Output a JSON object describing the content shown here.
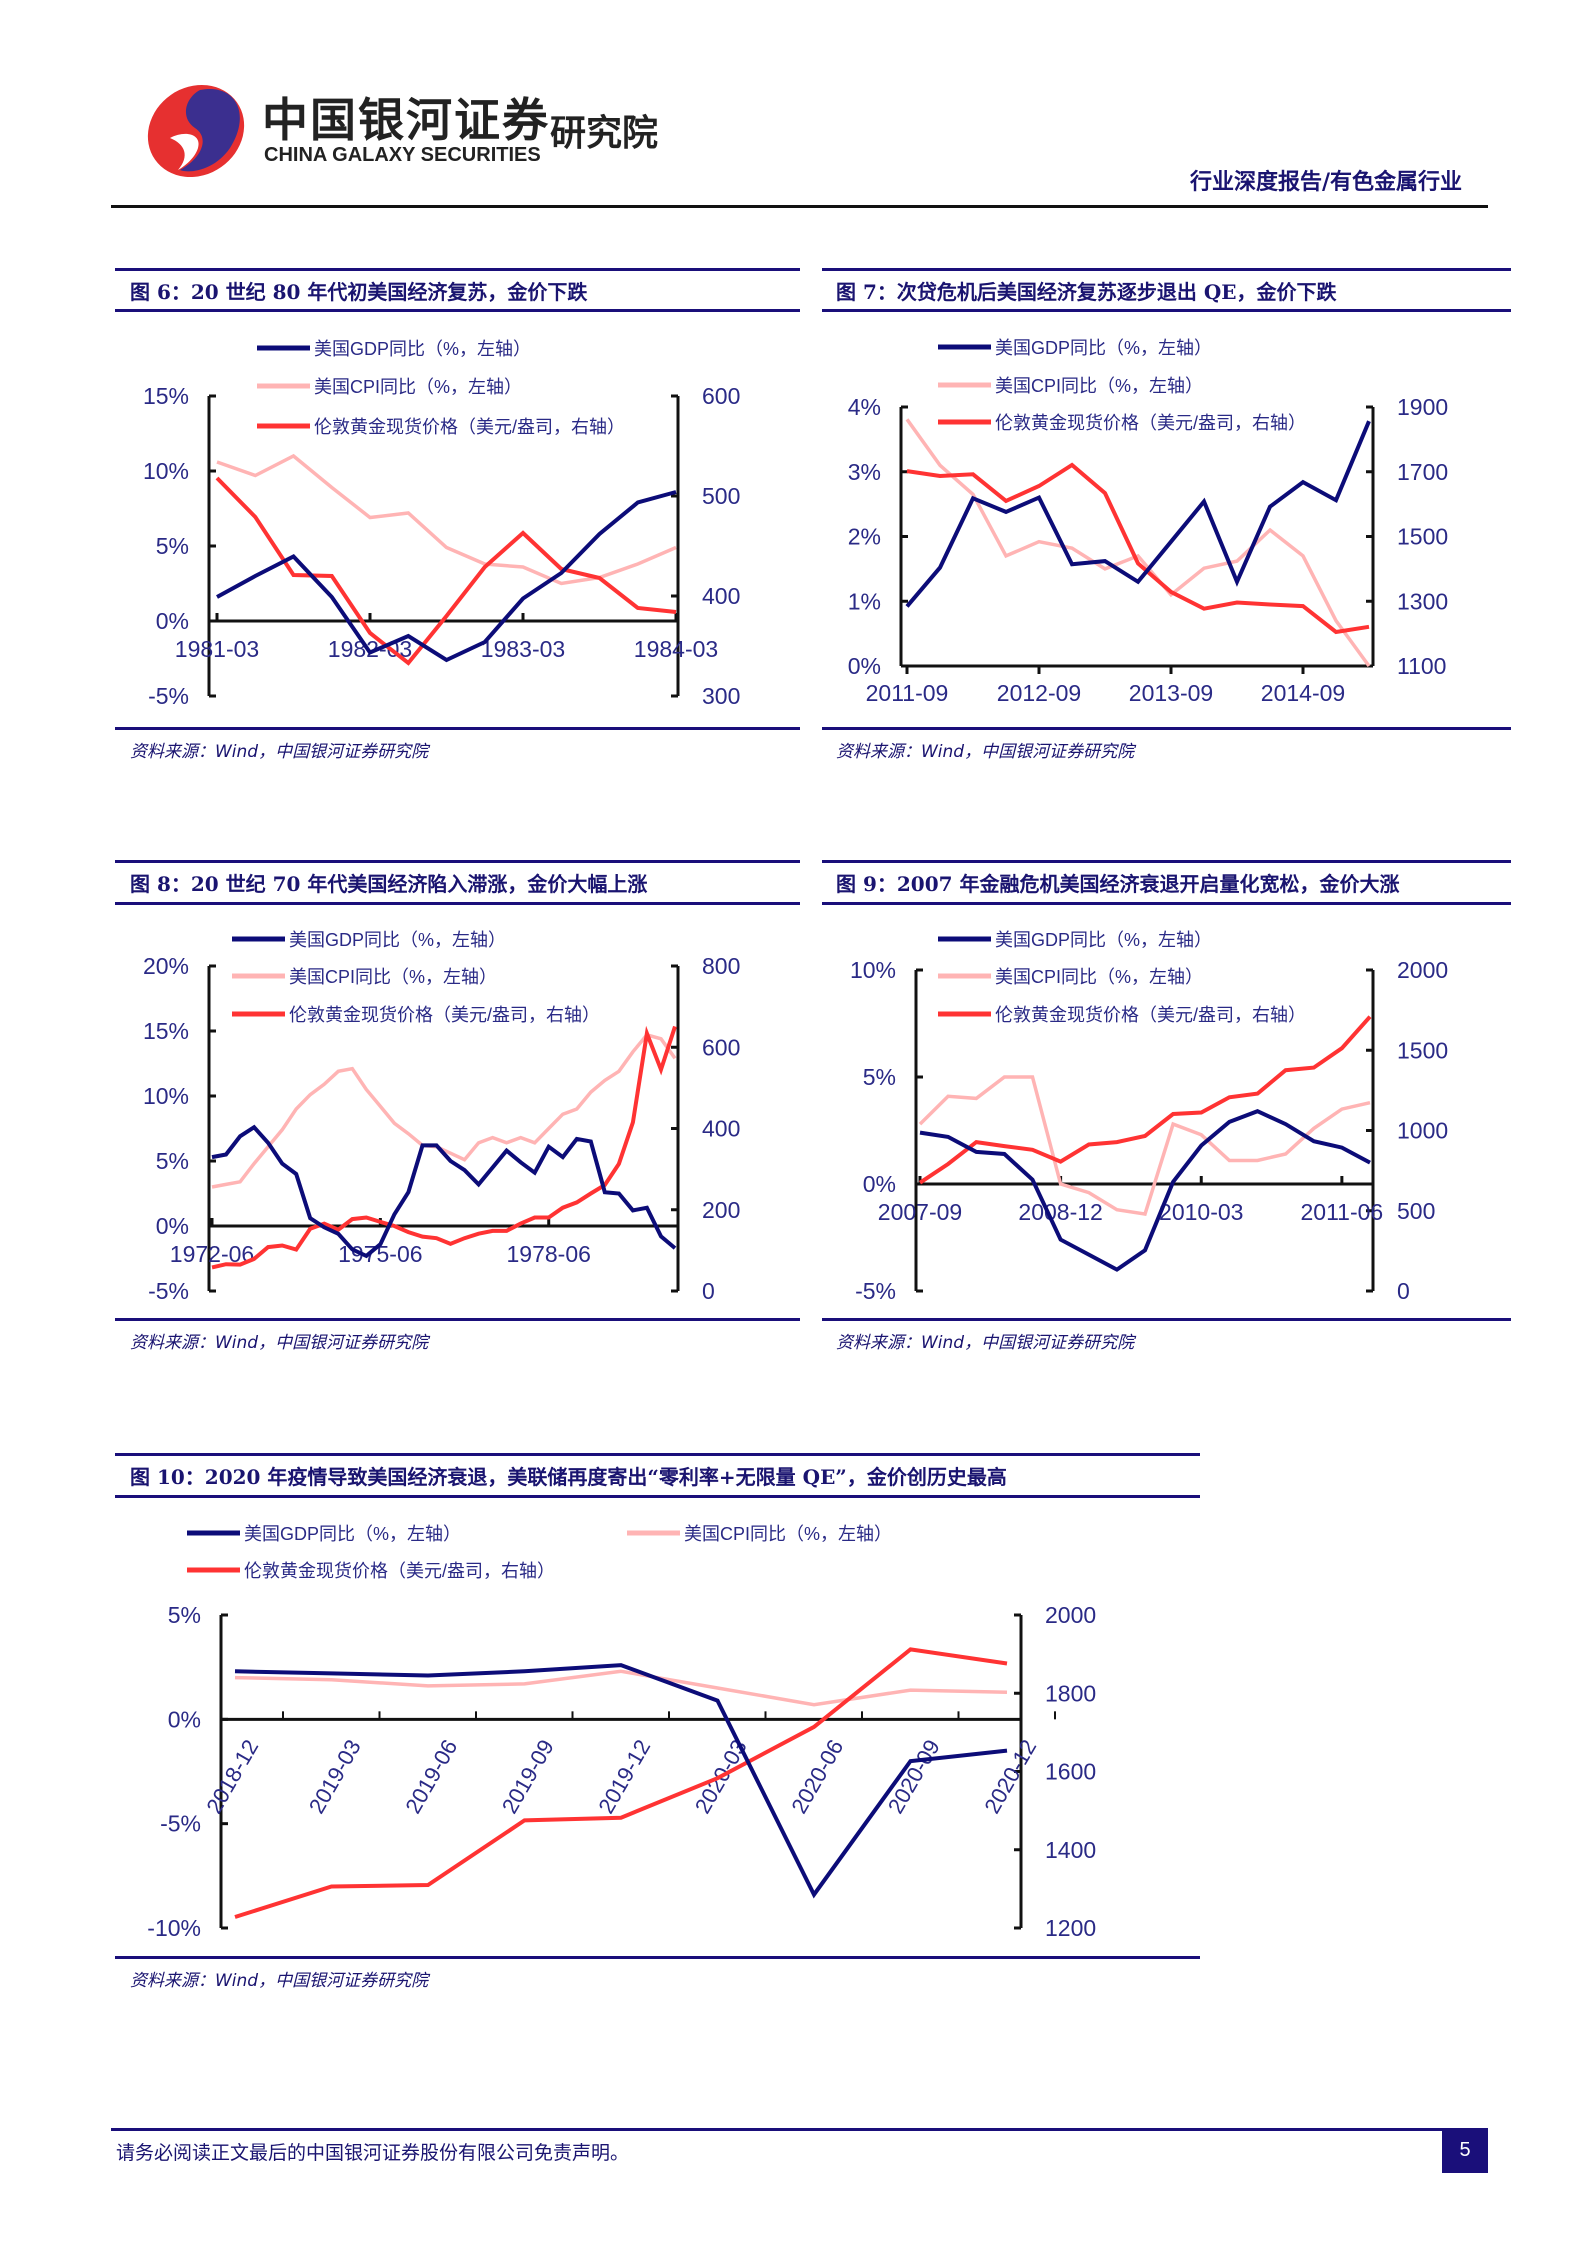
{
  "header": {
    "logo_cn": "中国银河证券",
    "logo_en": "CHINA GALAXY SECURITIES",
    "logo_institute": "研究院",
    "report_category": "行业深度报告/有色金属行业"
  },
  "colors": {
    "gdp": "#0c0c78",
    "cpi": "#ffb4b4",
    "gold": "#ff3333",
    "rule": "#1a0f7a",
    "axis_text": "#2a2a86"
  },
  "footer": {
    "disclaimer": "请务必阅读正文最后的中国银河证券股份有限公司免责声明。",
    "page_number": "5"
  },
  "chart_data": [
    {
      "type": "line",
      "title": "图 6：20 世纪 80 年代初美国经济复苏，金价下跌",
      "source": "资料来源：Wind，中国银河证券研究院",
      "x": [
        "1981-03",
        "1981-06",
        "1981-09",
        "1981-12",
        "1982-03",
        "1982-06",
        "1982-09",
        "1982-12",
        "1983-03",
        "1983-06",
        "1983-09",
        "1983-12",
        "1984-03"
      ],
      "x_tick_labels": [
        "1981-03",
        "1982-03",
        "1983-03",
        "1984-03"
      ],
      "y_left": {
        "range": [
          -5,
          15
        ],
        "ticks": [
          -5,
          0,
          5,
          10,
          15
        ],
        "labels": [
          "-5%",
          "0%",
          "5%",
          "10%",
          "15%"
        ]
      },
      "y_right": {
        "range": [
          300,
          600
        ],
        "ticks": [
          300,
          400,
          500,
          600
        ],
        "labels": [
          "300",
          "400",
          "500",
          "600"
        ]
      },
      "series": [
        {
          "name": "美国GDP同比（%，左轴）",
          "axis": "left",
          "color": "#0c0c78",
          "values": [
            1.6,
            3.0,
            4.3,
            1.6,
            -2.1,
            -1.0,
            -2.6,
            -1.4,
            1.5,
            3.2,
            5.8,
            7.9,
            8.6
          ]
        },
        {
          "name": "美国CPI同比（%，左轴）",
          "axis": "left",
          "color": "#ffb4b4",
          "values": [
            10.6,
            9.7,
            11.0,
            8.9,
            6.9,
            7.2,
            4.9,
            3.8,
            3.6,
            2.5,
            2.9,
            3.8,
            4.9
          ]
        },
        {
          "name": "伦敦黄金现货价格（美元/盎司，右轴）",
          "axis": "right",
          "color": "#ff3333",
          "values": [
            518,
            479,
            421,
            420,
            363,
            333,
            380,
            429,
            463,
            427,
            418,
            388,
            384
          ]
        }
      ]
    },
    {
      "type": "line",
      "title": "图 7：次贷危机后美国经济复苏逐步退出 QE，金价下跌",
      "source": "资料来源：Wind，中国银河证券研究院",
      "x": [
        "2011-09",
        "2011-12",
        "2012-03",
        "2012-06",
        "2012-09",
        "2012-12",
        "2013-03",
        "2013-06",
        "2013-09",
        "2013-12",
        "2014-03",
        "2014-06",
        "2014-09",
        "2014-12",
        "2015-03"
      ],
      "x_tick_labels": [
        "2011-09",
        "2012-09",
        "2013-09",
        "2014-09"
      ],
      "y_left": {
        "range": [
          0,
          4
        ],
        "ticks": [
          0,
          1,
          2,
          3,
          4
        ],
        "labels": [
          "0%",
          "1%",
          "2%",
          "3%",
          "4%"
        ]
      },
      "y_right": {
        "range": [
          1100,
          1900
        ],
        "ticks": [
          1100,
          1300,
          1500,
          1700,
          1900
        ],
        "labels": [
          "1100",
          "1300",
          "1500",
          "1700",
          "1900"
        ]
      },
      "series": [
        {
          "name": "美国GDP同比（%，左轴）",
          "axis": "left",
          "color": "#0c0c78",
          "values": [
            0.92,
            1.52,
            2.59,
            2.38,
            2.6,
            1.57,
            1.62,
            1.3,
            1.92,
            2.54,
            1.3,
            2.46,
            2.84,
            2.56,
            3.78
          ]
        },
        {
          "name": "美国CPI同比（%，左轴）",
          "axis": "left",
          "color": "#ffb4b4",
          "values": [
            3.81,
            3.1,
            2.65,
            1.7,
            1.92,
            1.82,
            1.5,
            1.7,
            1.1,
            1.51,
            1.62,
            2.1,
            1.7,
            0.7,
            0.0
          ]
        },
        {
          "name": "伦敦黄金现货价格（美元/盎司，右轴）",
          "axis": "right",
          "color": "#ff3333",
          "values": [
            1702,
            1687,
            1692,
            1610,
            1656,
            1721,
            1634,
            1417,
            1329,
            1277,
            1296,
            1290,
            1285,
            1205,
            1221
          ]
        }
      ]
    },
    {
      "type": "line",
      "title": "图 8：20 世纪 70 年代美国经济陷入滞涨，金价大幅上涨",
      "source": "资料来源：Wind，中国银河证券研究院",
      "x": [
        "1972-06",
        "1972-09",
        "1972-12",
        "1973-03",
        "1973-06",
        "1973-09",
        "1973-12",
        "1974-03",
        "1974-06",
        "1974-09",
        "1974-12",
        "1975-03",
        "1975-06",
        "1975-09",
        "1975-12",
        "1976-03",
        "1976-06",
        "1976-09",
        "1976-12",
        "1977-03",
        "1977-06",
        "1977-09",
        "1977-12",
        "1978-03",
        "1978-06",
        "1978-09",
        "1978-12",
        "1979-03",
        "1979-06",
        "1979-09",
        "1979-12",
        "1980-03",
        "1980-06",
        "1980-09"
      ],
      "x_tick_labels": [
        "1972-06",
        "1975-06",
        "1978-06"
      ],
      "y_left": {
        "range": [
          -5,
          20
        ],
        "ticks": [
          -5,
          0,
          5,
          10,
          15,
          20
        ],
        "labels": [
          "-5%",
          "0%",
          "5%",
          "10%",
          "15%",
          "20%"
        ]
      },
      "y_right": {
        "range": [
          0,
          800
        ],
        "ticks": [
          0,
          200,
          400,
          600,
          800
        ],
        "labels": [
          "0",
          "200",
          "400",
          "600",
          "800"
        ]
      },
      "series": [
        {
          "name": "美国GDP同比（%，左轴）",
          "axis": "left",
          "color": "#0c0c78",
          "values": [
            5.3,
            5.5,
            6.9,
            7.6,
            6.4,
            4.8,
            4.0,
            0.6,
            -0.1,
            -0.6,
            -1.8,
            -2.3,
            -1.4,
            0.9,
            2.6,
            6.2,
            6.2,
            5.0,
            4.3,
            3.2,
            4.5,
            5.8,
            4.9,
            4.1,
            6.1,
            5.3,
            6.7,
            6.5,
            2.6,
            2.5,
            1.2,
            1.4,
            -0.8,
            -1.7
          ]
        },
        {
          "name": "美国CPI同比（%，左轴）",
          "axis": "left",
          "color": "#ffb4b4",
          "values": [
            3.0,
            3.2,
            3.4,
            4.8,
            6.1,
            7.4,
            9.0,
            10.1,
            10.9,
            11.9,
            12.1,
            10.5,
            9.2,
            7.9,
            7.1,
            6.2,
            6.1,
            5.6,
            5.1,
            6.4,
            6.8,
            6.4,
            6.8,
            6.4,
            7.5,
            8.6,
            9.0,
            10.3,
            11.2,
            11.9,
            13.4,
            14.7,
            14.4,
            12.9
          ]
        },
        {
          "name": "伦敦黄金现货价格（美元/盎司，右轴）",
          "axis": "right",
          "color": "#ff3333",
          "values": [
            58,
            66,
            65,
            79,
            108,
            112,
            102,
            153,
            166,
            151,
            177,
            181,
            170,
            160,
            145,
            134,
            130,
            116,
            130,
            141,
            148,
            148,
            166,
            181,
            181,
            205,
            218,
            240,
            261,
            313,
            415,
            634,
            545,
            651
          ]
        }
      ]
    },
    {
      "type": "line",
      "title": "图 9：2007 年金融危机美国经济衰退开启量化宽松，金价大涨",
      "source": "资料来源：Wind，中国银河证券研究院",
      "x": [
        "2007-09",
        "2007-12",
        "2008-03",
        "2008-06",
        "2008-09",
        "2008-12",
        "2009-03",
        "2009-06",
        "2009-09",
        "2009-12",
        "2010-03",
        "2010-06",
        "2010-09",
        "2010-12",
        "2011-03",
        "2011-06",
        "2011-09"
      ],
      "x_tick_labels": [
        "2007-09",
        "2008-12",
        "2010-03",
        "2011-06"
      ],
      "y_left": {
        "range": [
          -5,
          10
        ],
        "ticks": [
          -5,
          0,
          5,
          10
        ],
        "labels": [
          "-5%",
          "0%",
          "5%",
          "10%"
        ]
      },
      "y_right": {
        "range": [
          0,
          2000
        ],
        "ticks": [
          0,
          500,
          1000,
          1500,
          2000
        ],
        "labels": [
          "0",
          "500",
          "1000",
          "1500",
          "2000"
        ]
      },
      "series": [
        {
          "name": "美国GDP同比（%，左轴）",
          "axis": "left",
          "color": "#0c0c78",
          "values": [
            2.4,
            2.2,
            1.5,
            1.4,
            0.2,
            -2.6,
            -3.3,
            -4.0,
            -3.1,
            0.1,
            1.8,
            2.9,
            3.4,
            2.8,
            2.0,
            1.7,
            1.0
          ]
        },
        {
          "name": "美国CPI同比（%，左轴）",
          "axis": "left",
          "color": "#ffb4b4",
          "values": [
            2.8,
            4.1,
            4.0,
            5.0,
            5.0,
            0.0,
            -0.4,
            -1.2,
            -1.4,
            2.8,
            2.3,
            1.1,
            1.1,
            1.4,
            2.6,
            3.5,
            3.8
          ]
        },
        {
          "name": "伦敦黄金现货价格（美元/盎司，右轴）",
          "axis": "right",
          "color": "#ff3333",
          "values": [
            675,
            791,
            928,
            903,
            880,
            806,
            913,
            928,
            966,
            1103,
            1112,
            1207,
            1230,
            1376,
            1392,
            1513,
            1709
          ]
        }
      ]
    },
    {
      "type": "line",
      "title": "图 10：2020 年疫情导致美国经济衰退，美联储再度寄出“零利率+无限量 QE”，金价创历史最高",
      "source": "资料来源：Wind，中国银河证券研究院",
      "x": [
        "2018-12",
        "2019-03",
        "2019-06",
        "2019-09",
        "2019-12",
        "2020-03",
        "2020-06",
        "2020-09",
        "2020-12"
      ],
      "x_tick_labels": [
        "2018-12",
        "2019-03",
        "2019-06",
        "2019-09",
        "2019-12",
        "2020-03",
        "2020-06",
        "2020-09",
        "2020-12"
      ],
      "y_left": {
        "range": [
          -10,
          5
        ],
        "ticks": [
          -10,
          -5,
          0,
          5
        ],
        "labels": [
          "-10%",
          "-5%",
          "0%",
          "5%"
        ]
      },
      "y_right": {
        "range": [
          1200,
          2000
        ],
        "ticks": [
          1200,
          1400,
          1600,
          1800,
          2000
        ],
        "labels": [
          "1200",
          "1400",
          "1600",
          "1800",
          "2000"
        ]
      },
      "series": [
        {
          "name": "美国GDP同比（%，左轴）",
          "axis": "left",
          "color": "#0c0c78",
          "values": [
            2.3,
            2.2,
            2.1,
            2.3,
            2.6,
            0.9,
            -8.4,
            -2.0,
            -1.5
          ]
        },
        {
          "name": "美国CPI同比（%，左轴）",
          "axis": "left",
          "color": "#ffb4b4",
          "values": [
            2.0,
            1.9,
            1.6,
            1.7,
            2.3,
            1.5,
            0.7,
            1.4,
            1.3
          ]
        },
        {
          "name": "伦敦黄金现货价格（美元/盎司，右轴）",
          "axis": "right",
          "color": "#ff3333",
          "values": [
            1228,
            1306,
            1310,
            1475,
            1482,
            1583,
            1714,
            1912,
            1876
          ]
        }
      ]
    }
  ]
}
